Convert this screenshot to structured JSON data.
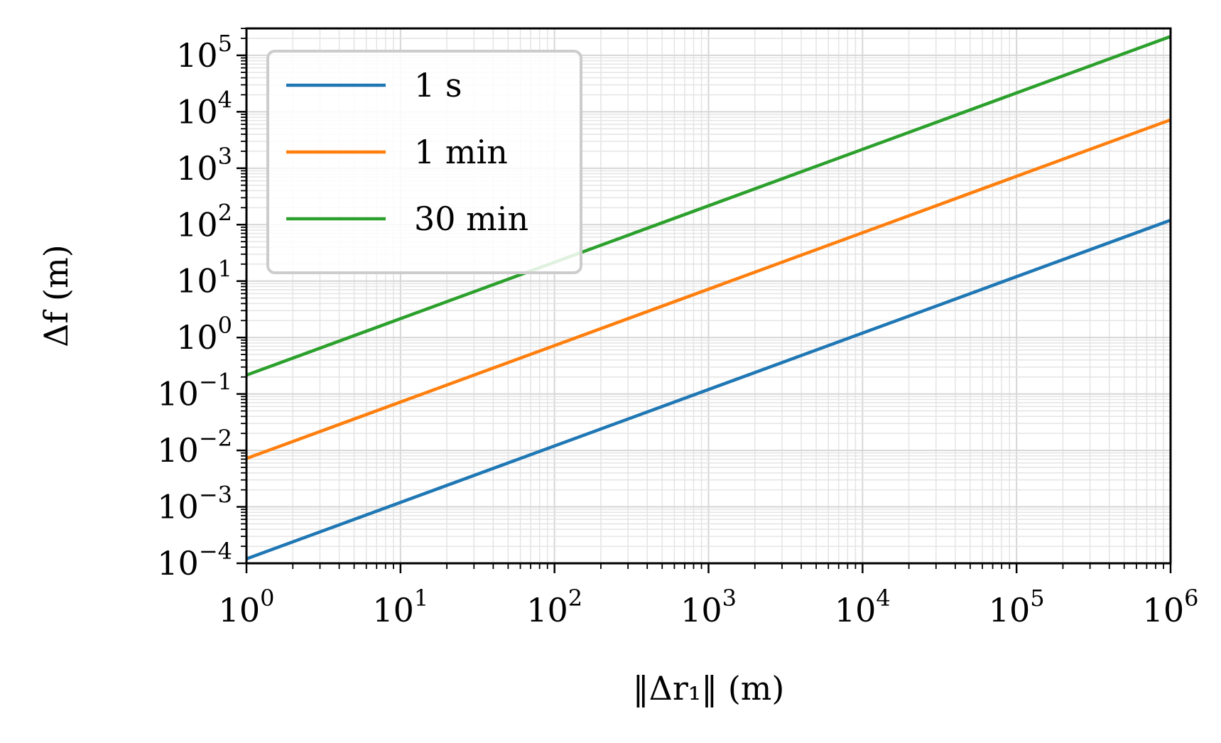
{
  "chart_data": {
    "type": "line",
    "x_scale": "log",
    "y_scale": "log",
    "xlim": [
      1,
      1000000
    ],
    "ylim": [
      0.0001,
      300000
    ],
    "xlabel": "‖Δr₁‖ (m)",
    "ylabel": "Δf (m)",
    "grid": true,
    "legend_position": "top-left",
    "x_ticks": [
      {
        "base": "10",
        "exp": "0"
      },
      {
        "base": "10",
        "exp": "1"
      },
      {
        "base": "10",
        "exp": "2"
      },
      {
        "base": "10",
        "exp": "3"
      },
      {
        "base": "10",
        "exp": "4"
      },
      {
        "base": "10",
        "exp": "5"
      },
      {
        "base": "10",
        "exp": "6"
      }
    ],
    "y_ticks": [
      {
        "base": "10",
        "exp": "−4"
      },
      {
        "base": "10",
        "exp": "−3"
      },
      {
        "base": "10",
        "exp": "−2"
      },
      {
        "base": "10",
        "exp": "−1"
      },
      {
        "base": "10",
        "exp": "0"
      },
      {
        "base": "10",
        "exp": "1"
      },
      {
        "base": "10",
        "exp": "2"
      },
      {
        "base": "10",
        "exp": "3"
      },
      {
        "base": "10",
        "exp": "4"
      },
      {
        "base": "10",
        "exp": "5"
      }
    ],
    "series": [
      {
        "name": "1 s",
        "color": "#1f77b4",
        "x": [
          1,
          1000000
        ],
        "y": [
          0.00012,
          120
        ]
      },
      {
        "name": "1 min",
        "color": "#ff7f0e",
        "x": [
          1,
          1000000
        ],
        "y": [
          0.0072,
          7200
        ]
      },
      {
        "name": "30 min",
        "color": "#2ca02c",
        "x": [
          1,
          1000000
        ],
        "y": [
          0.216,
          216000
        ]
      }
    ]
  }
}
